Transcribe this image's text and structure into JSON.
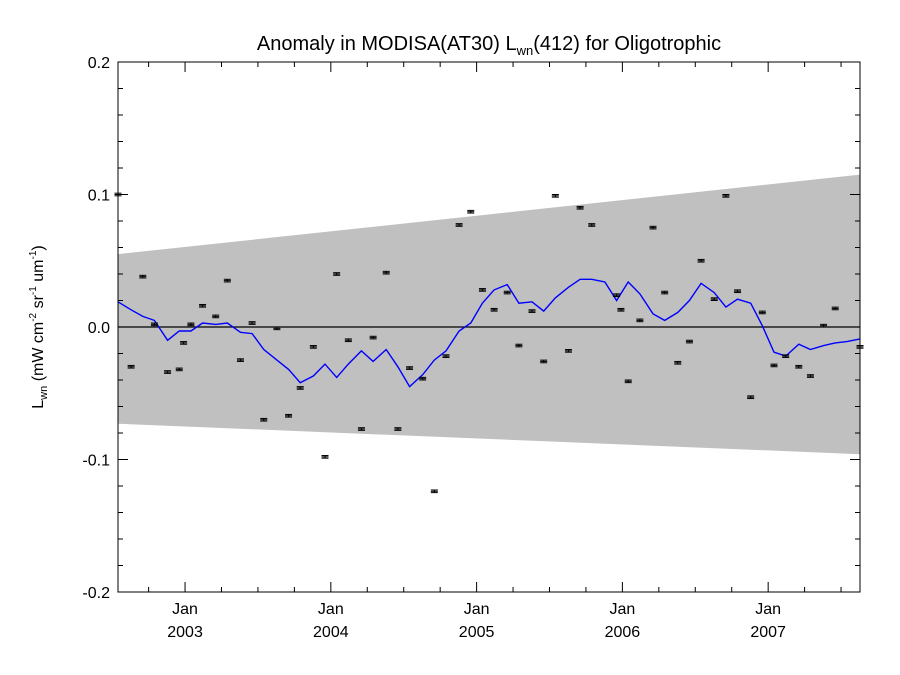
{
  "chart_data": {
    "type": "line",
    "title": {
      "prefix": "Anomaly in MODISA(AT30) L",
      "subscript": "wn",
      "suffix": "(412) for Oligotrophic"
    },
    "ylabel": {
      "main": "L",
      "main_sub": "wn",
      "units_open": " (mW cm",
      "sup1": "-2",
      "mid1": " sr",
      "sup2": "-1",
      "mid2": " um",
      "sup3": "-1",
      "units_close": ")"
    },
    "xlim": [
      2002.54,
      2007.63
    ],
    "ylim": [
      -0.2,
      0.2
    ],
    "yticks": [
      {
        "value": 0.2,
        "label": "0.2"
      },
      {
        "value": 0.1,
        "label": "0.1"
      },
      {
        "value": 0.0,
        "label": "0.0"
      },
      {
        "value": -0.1,
        "label": "-0.1"
      },
      {
        "value": -0.2,
        "label": "-0.2"
      }
    ],
    "xticks": [
      {
        "value": 2003.0,
        "month": "Jan",
        "year": "2003"
      },
      {
        "value": 2004.0,
        "month": "Jan",
        "year": "2004"
      },
      {
        "value": 2005.0,
        "month": "Jan",
        "year": "2005"
      },
      {
        "value": 2006.0,
        "month": "Jan",
        "year": "2006"
      },
      {
        "value": 2007.0,
        "month": "Jan",
        "year": "2007"
      }
    ],
    "grid": false,
    "zero_line": 0.0,
    "band": {
      "color": "#c0c0c0",
      "upper": [
        [
          2002.54,
          0.055
        ],
        [
          2007.63,
          0.115
        ]
      ],
      "lower": [
        [
          2002.54,
          -0.073
        ],
        [
          2007.63,
          -0.096
        ]
      ]
    },
    "line_series": {
      "color": "#0000ff",
      "points": [
        [
          2002.54,
          0.019
        ],
        [
          2002.63,
          0.013
        ],
        [
          2002.71,
          0.008
        ],
        [
          2002.79,
          0.005
        ],
        [
          2002.88,
          -0.01
        ],
        [
          2002.96,
          -0.003
        ],
        [
          2003.04,
          -0.003
        ],
        [
          2003.12,
          0.003
        ],
        [
          2003.21,
          0.002
        ],
        [
          2003.29,
          0.003
        ],
        [
          2003.38,
          -0.004
        ],
        [
          2003.46,
          -0.005
        ],
        [
          2003.54,
          -0.017
        ],
        [
          2003.63,
          -0.025
        ],
        [
          2003.71,
          -0.032
        ],
        [
          2003.79,
          -0.042
        ],
        [
          2003.88,
          -0.037
        ],
        [
          2003.96,
          -0.028
        ],
        [
          2004.04,
          -0.038
        ],
        [
          2004.12,
          -0.028
        ],
        [
          2004.21,
          -0.018
        ],
        [
          2004.29,
          -0.026
        ],
        [
          2004.38,
          -0.017
        ],
        [
          2004.46,
          -0.03
        ],
        [
          2004.54,
          -0.045
        ],
        [
          2004.63,
          -0.036
        ],
        [
          2004.71,
          -0.025
        ],
        [
          2004.79,
          -0.018
        ],
        [
          2004.88,
          -0.003
        ],
        [
          2004.96,
          0.003
        ],
        [
          2005.04,
          0.018
        ],
        [
          2005.12,
          0.028
        ],
        [
          2005.21,
          0.032
        ],
        [
          2005.29,
          0.018
        ],
        [
          2005.38,
          0.019
        ],
        [
          2005.46,
          0.012
        ],
        [
          2005.54,
          0.022
        ],
        [
          2005.63,
          0.03
        ],
        [
          2005.71,
          0.036
        ],
        [
          2005.79,
          0.036
        ],
        [
          2005.88,
          0.034
        ],
        [
          2005.96,
          0.02
        ],
        [
          2006.04,
          0.034
        ],
        [
          2006.12,
          0.025
        ],
        [
          2006.21,
          0.01
        ],
        [
          2006.29,
          0.005
        ],
        [
          2006.38,
          0.011
        ],
        [
          2006.46,
          0.02
        ],
        [
          2006.54,
          0.033
        ],
        [
          2006.63,
          0.026
        ],
        [
          2006.71,
          0.015
        ],
        [
          2006.79,
          0.021
        ],
        [
          2006.88,
          0.018
        ],
        [
          2006.96,
          0.001
        ],
        [
          2007.04,
          -0.019
        ],
        [
          2007.12,
          -0.022
        ],
        [
          2007.21,
          -0.013
        ],
        [
          2007.29,
          -0.017
        ],
        [
          2007.38,
          -0.014
        ],
        [
          2007.46,
          -0.012
        ],
        [
          2007.54,
          -0.011
        ],
        [
          2007.63,
          -0.009
        ]
      ]
    },
    "scatter_series": {
      "color": "#000000",
      "error_bar": 0.001,
      "points": [
        [
          2002.54,
          0.1
        ],
        [
          2002.63,
          -0.03
        ],
        [
          2002.71,
          0.038
        ],
        [
          2002.79,
          0.002
        ],
        [
          2002.88,
          -0.034
        ],
        [
          2002.96,
          -0.032
        ],
        [
          2002.99,
          -0.012
        ],
        [
          2003.04,
          0.002
        ],
        [
          2003.12,
          0.016
        ],
        [
          2003.21,
          0.008
        ],
        [
          2003.29,
          0.035
        ],
        [
          2003.38,
          -0.025
        ],
        [
          2003.46,
          0.003
        ],
        [
          2003.54,
          -0.07
        ],
        [
          2003.63,
          -0.001
        ],
        [
          2003.71,
          -0.067
        ],
        [
          2003.79,
          -0.046
        ],
        [
          2003.88,
          -0.015
        ],
        [
          2003.96,
          -0.098
        ],
        [
          2004.04,
          0.04
        ],
        [
          2004.12,
          -0.01
        ],
        [
          2004.21,
          -0.077
        ],
        [
          2004.29,
          -0.008
        ],
        [
          2004.38,
          0.041
        ],
        [
          2004.46,
          -0.077
        ],
        [
          2004.54,
          -0.031
        ],
        [
          2004.63,
          -0.039
        ],
        [
          2004.71,
          -0.124
        ],
        [
          2004.79,
          -0.022
        ],
        [
          2004.88,
          0.077
        ],
        [
          2004.96,
          0.087
        ],
        [
          2005.04,
          0.028
        ],
        [
          2005.12,
          0.013
        ],
        [
          2005.21,
          0.026
        ],
        [
          2005.29,
          -0.014
        ],
        [
          2005.38,
          0.012
        ],
        [
          2005.46,
          -0.026
        ],
        [
          2005.54,
          0.099
        ],
        [
          2005.63,
          -0.018
        ],
        [
          2005.71,
          0.09
        ],
        [
          2005.79,
          0.077
        ],
        [
          2005.96,
          0.024
        ],
        [
          2005.99,
          0.013
        ],
        [
          2006.04,
          -0.041
        ],
        [
          2006.12,
          0.005
        ],
        [
          2006.21,
          0.075
        ],
        [
          2006.29,
          0.026
        ],
        [
          2006.38,
          -0.027
        ],
        [
          2006.46,
          -0.011
        ],
        [
          2006.54,
          0.05
        ],
        [
          2006.63,
          0.021
        ],
        [
          2006.71,
          0.099
        ],
        [
          2006.79,
          0.027
        ],
        [
          2006.88,
          -0.053
        ],
        [
          2006.96,
          0.011
        ],
        [
          2007.04,
          -0.029
        ],
        [
          2007.12,
          -0.022
        ],
        [
          2007.21,
          -0.03
        ],
        [
          2007.29,
          -0.037
        ],
        [
          2007.38,
          0.001
        ],
        [
          2007.46,
          0.014
        ],
        [
          2007.63,
          -0.015
        ]
      ]
    }
  }
}
